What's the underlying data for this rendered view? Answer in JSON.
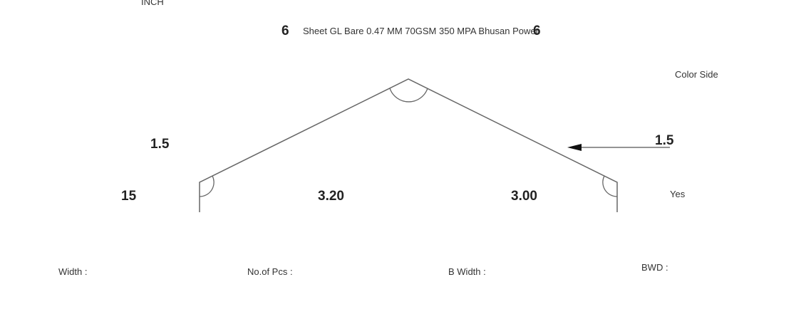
{
  "header": {
    "unit_label": "INCH",
    "qty_left": "6",
    "sheet_description": "Sheet GL Bare 0.47 MM 70GSM 350 MPA Bhusan Power",
    "qty_right": "6"
  },
  "drawing": {
    "color_side_label": "Color Side",
    "arrow_value": "1.5",
    "left_top_value": "1.5",
    "left_bottom_value": "15",
    "left_slope_value": "3.20",
    "right_slope_value": "3.00",
    "yes_label": "Yes"
  },
  "footer": {
    "width_label": "Width :",
    "pcs_label": "No.of Pcs :",
    "b_width_label": "B Width :",
    "bwd_label": "BWD :"
  }
}
